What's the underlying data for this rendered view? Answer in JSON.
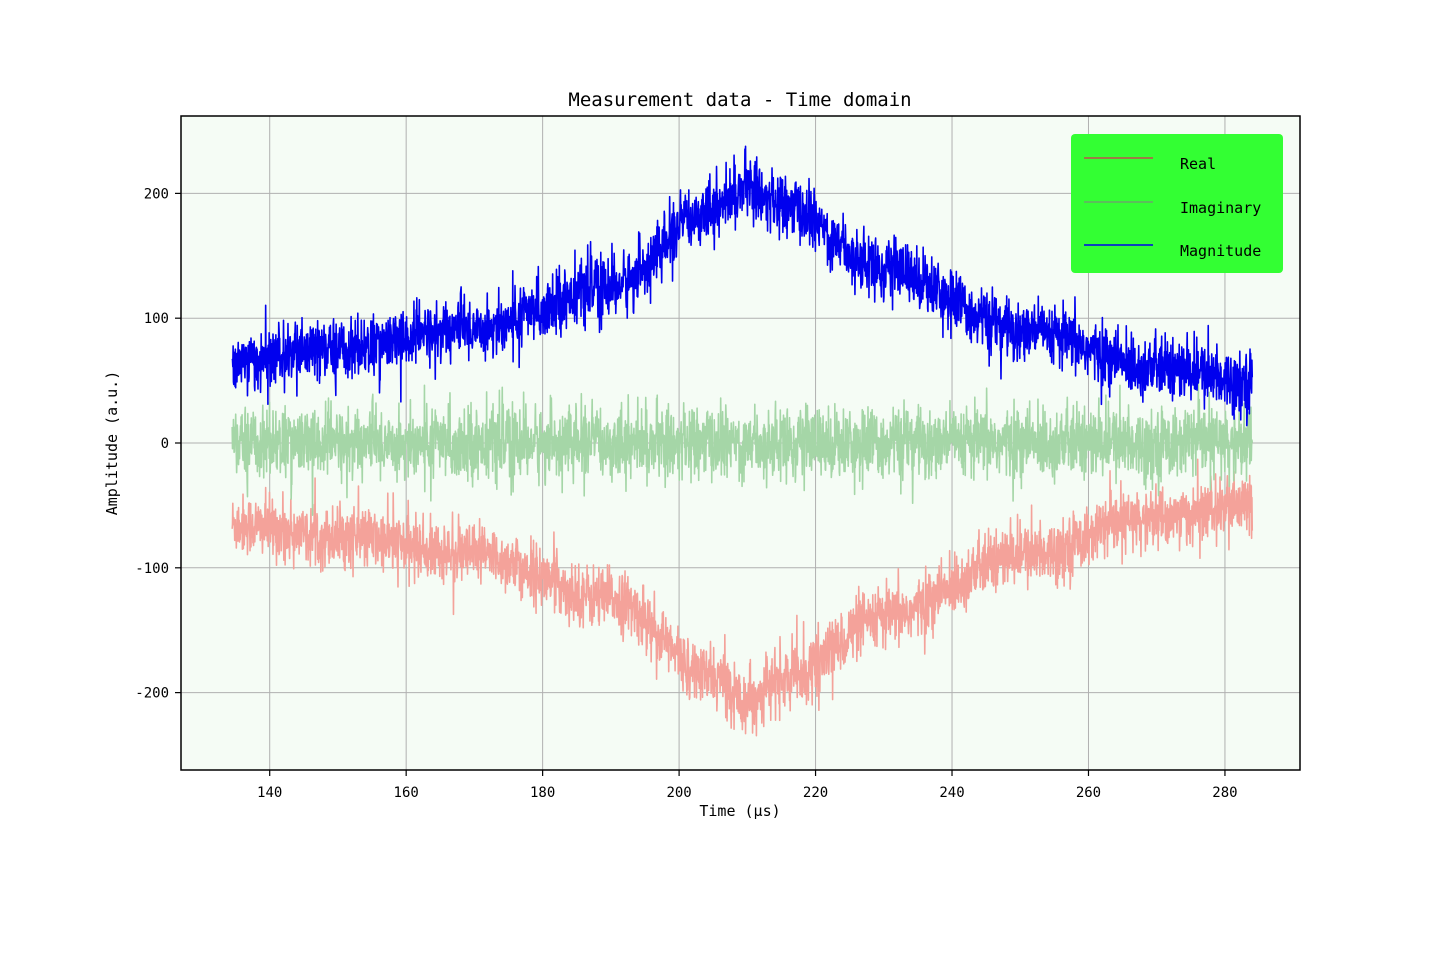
{
  "chart_data": {
    "type": "line",
    "title": "Measurement data - Time domain",
    "xlabel": "Time (µs)",
    "ylabel": "Amplitude (a.u.)",
    "xlim": [
      127,
      291
    ],
    "ylim": [
      -262,
      262
    ],
    "xticks": [
      140,
      160,
      180,
      200,
      220,
      240,
      260,
      280
    ],
    "yticks": [
      -200,
      -100,
      0,
      100,
      200
    ],
    "grid": true,
    "legend_position": "top-right",
    "background_color": "#f5fcf5",
    "legend_background": "#33ff33",
    "x_range": [
      134.5,
      284.0
    ],
    "noise": {
      "magnitude": 12,
      "real": 12,
      "imaginary": 14
    },
    "series": [
      {
        "name": "Real",
        "color": "#f4a29a",
        "legend_color": "#c0504d",
        "envelope": {
          "x": [
            134.5,
            150,
            170,
            190,
            205,
            210,
            215,
            230,
            250,
            270,
            284
          ],
          "y": [
            -65,
            -75,
            -90,
            -125,
            -188,
            -205,
            -190,
            -140,
            -90,
            -60,
            -50
          ]
        }
      },
      {
        "name": "Imaginary",
        "color": "#a5d6a7",
        "legend_color": "#6aa86a",
        "envelope": {
          "x": [
            134.5,
            284
          ],
          "y": [
            0,
            0
          ]
        }
      },
      {
        "name": "Magnitude",
        "color": "#0000ee",
        "legend_color": "#0000ee",
        "envelope": {
          "x": [
            134.5,
            150,
            170,
            190,
            205,
            210,
            215,
            230,
            250,
            270,
            284
          ],
          "y": [
            65,
            75,
            92,
            125,
            188,
            205,
            190,
            140,
            90,
            60,
            50
          ]
        }
      }
    ]
  }
}
